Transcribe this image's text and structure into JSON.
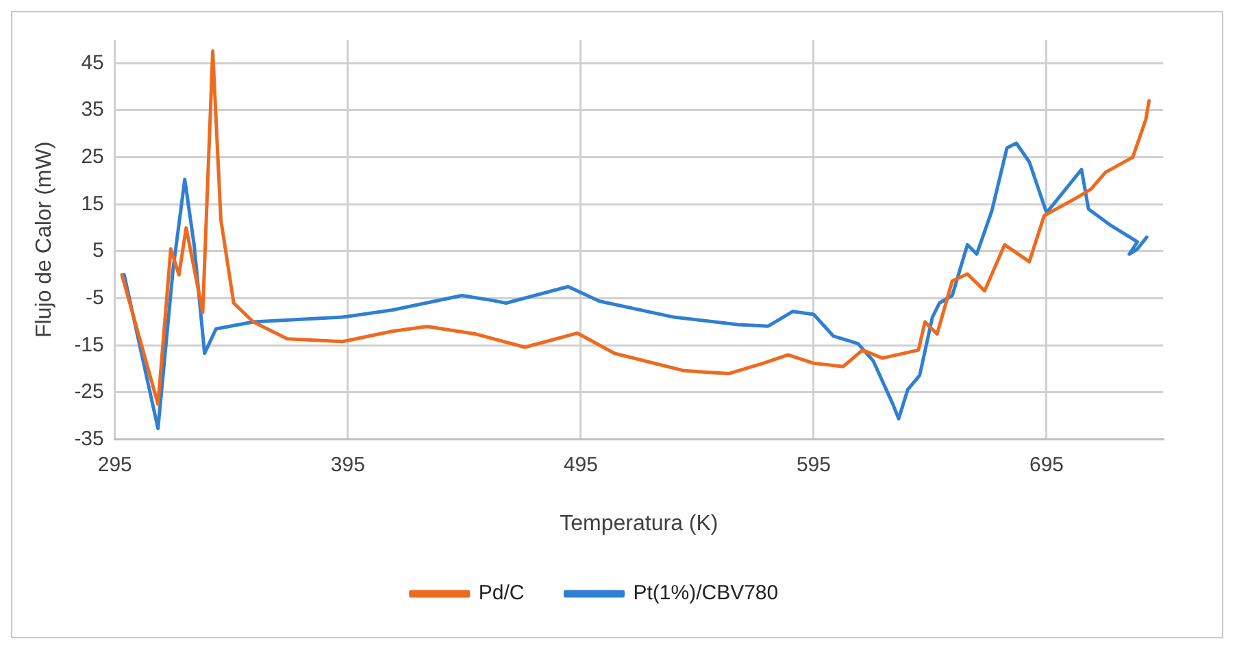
{
  "chart_data": {
    "type": "line",
    "xlabel": "Temperatura (K)",
    "ylabel": "Flujo de Calor (mW)",
    "xlim": [
      295,
      745
    ],
    "xticks": [
      295,
      395,
      495,
      595,
      695
    ],
    "ylim": [
      -35,
      50
    ],
    "yticks": [
      -35,
      -25,
      -15,
      -5,
      5,
      15,
      25,
      35,
      45
    ],
    "grid": true,
    "legend": "bottom",
    "marker": "none",
    "line_style": "solid",
    "series": [
      {
        "name": "Pd/C",
        "color": "#ee6a1f",
        "x": [
          298,
          313.5,
          319,
          322.5,
          325.6,
          332.7,
          337,
          340.5,
          346,
          354.4,
          369,
          392.7,
          414,
          429,
          450,
          471,
          493.6,
          509.5,
          539.5,
          558.7,
          573.4,
          584,
          595,
          607.7,
          616,
          624.5,
          640,
          642.8,
          648,
          654.5,
          661,
          668.4,
          677,
          687.6,
          694,
          707.6,
          714,
          720.3,
          732,
          737.6,
          739
        ],
        "values": [
          0,
          -27.5,
          5.5,
          0,
          10,
          -8,
          47.6,
          11.7,
          -6,
          -10,
          -13.6,
          -14.2,
          -12,
          -11,
          -12.6,
          -15.4,
          -12.4,
          -16.7,
          -20.4,
          -21,
          -18.8,
          -17,
          -18.8,
          -19.5,
          -16,
          -17.7,
          -16,
          -10,
          -12.6,
          -1.3,
          0.2,
          -3.4,
          6.4,
          2.8,
          12.6,
          16.3,
          18.2,
          21.8,
          25,
          33,
          37
        ]
      },
      {
        "name": "Pt(1%)/CBV780",
        "color": "#2f7fd2",
        "x": [
          299,
          313.5,
          320,
          325,
          329,
          333.5,
          338.4,
          354.4,
          392.7,
          414,
          444,
          456.6,
          463,
          489.6,
          503,
          535,
          562.6,
          575.5,
          586,
          595,
          603.4,
          614,
          620.6,
          629,
          631.5,
          635.4,
          640.5,
          646,
          649,
          654.5,
          661,
          665,
          671.5,
          678,
          682,
          687.6,
          695,
          710,
          713,
          722.6,
          734,
          730.5,
          734,
          738
        ],
        "values": [
          0,
          -32.7,
          1.3,
          20.3,
          6.4,
          -16.7,
          -11.5,
          -10,
          -9,
          -7.5,
          -4.4,
          -5.4,
          -6,
          -2.5,
          -5.6,
          -9,
          -10.6,
          -10.9,
          -7.8,
          -8.4,
          -13,
          -14.6,
          -18.3,
          -27.5,
          -30.6,
          -24.4,
          -21.4,
          -9,
          -6,
          -4.4,
          6.4,
          4.4,
          13.6,
          27,
          28,
          24,
          13.2,
          22.4,
          14,
          10.5,
          7,
          4.4,
          5.5,
          8
        ]
      }
    ]
  }
}
